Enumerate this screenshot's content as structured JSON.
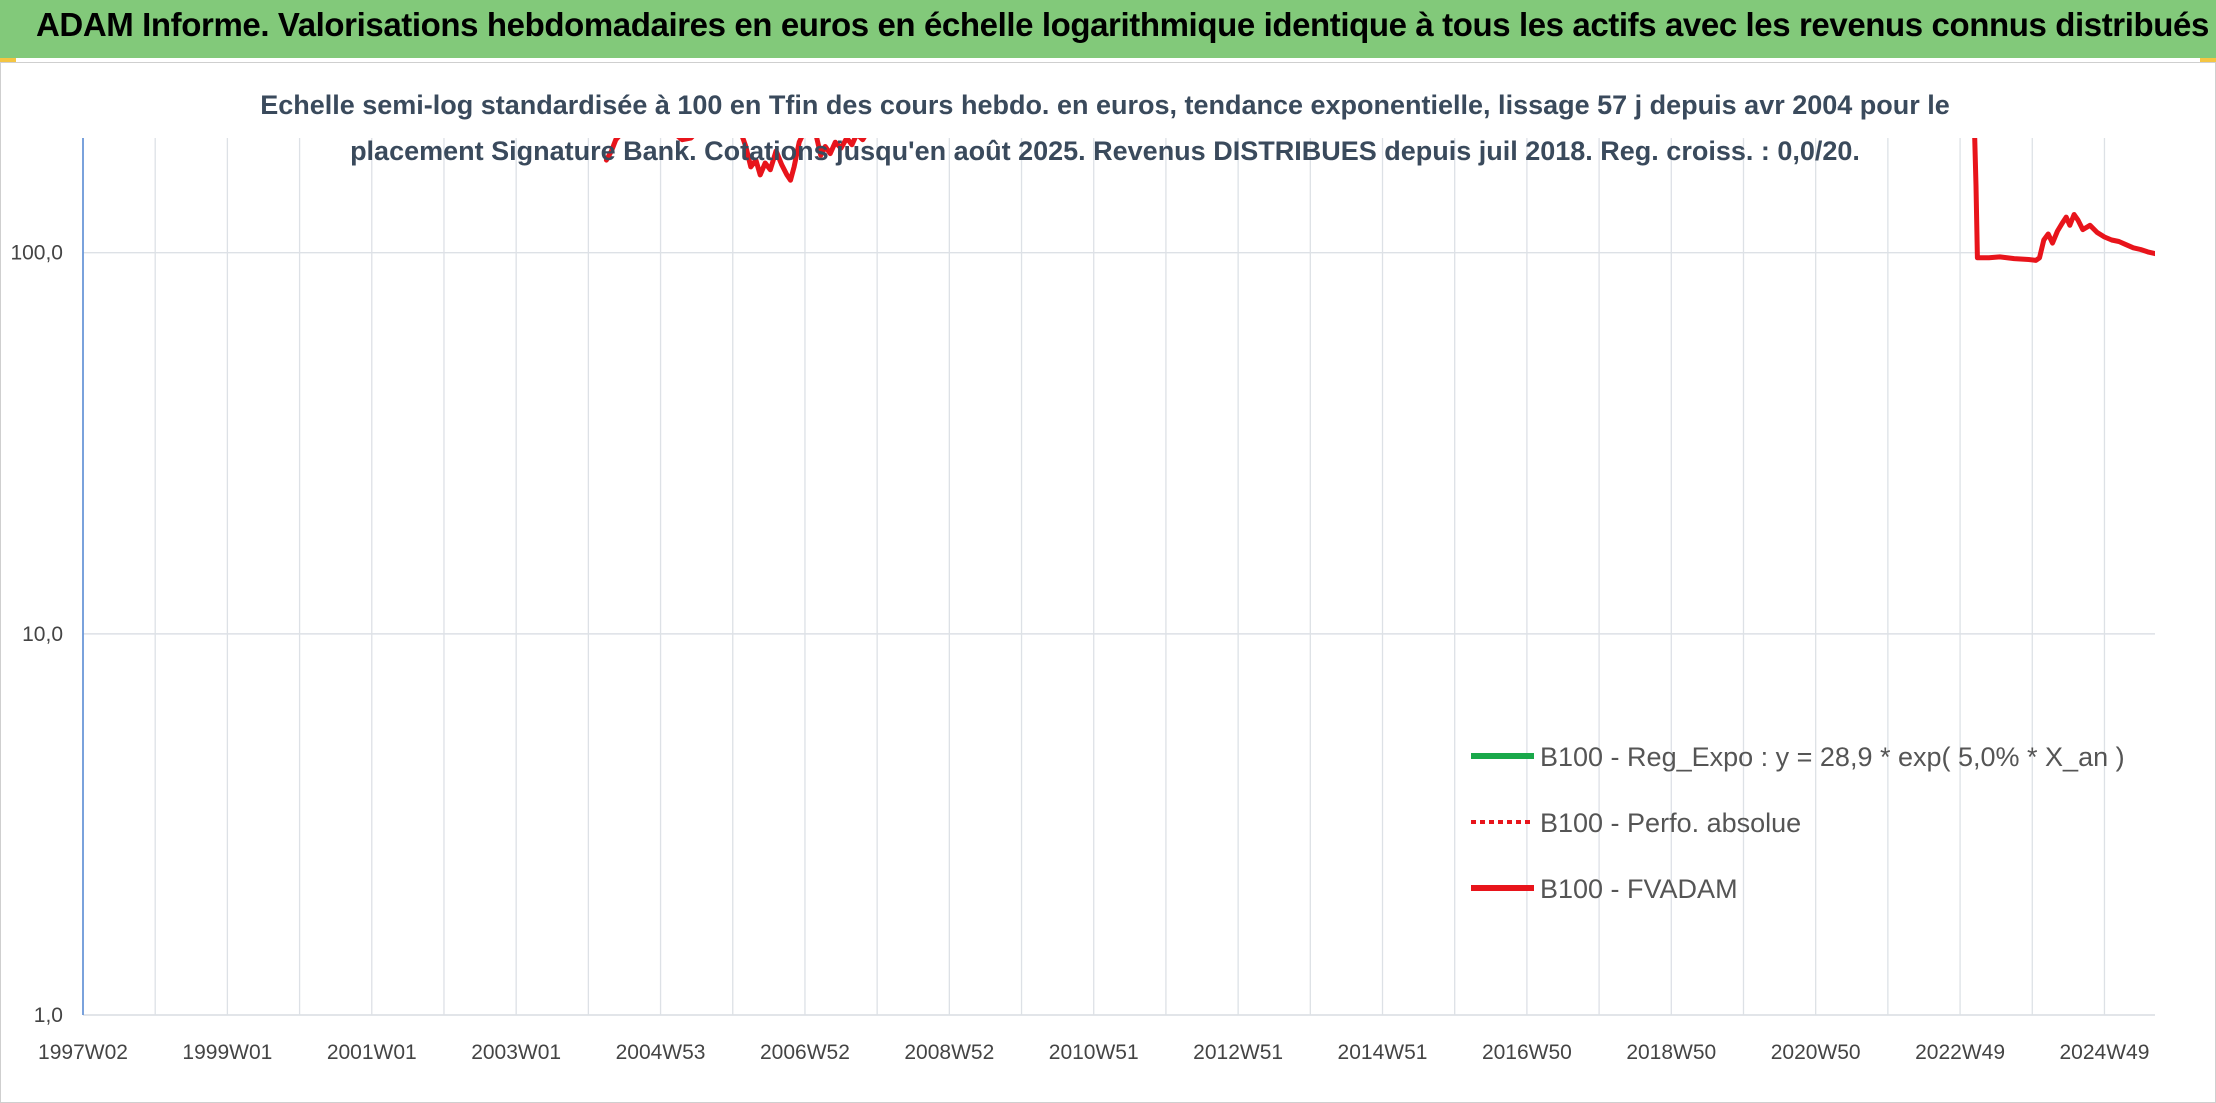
{
  "header": {
    "title": "ADAM Informe. Valorisations hebdomadaires en euros en échelle logarithmique identique à tous les actifs avec les revenus connus distribués"
  },
  "colors": {
    "banner": "#82c97a",
    "accent_corner": "#f4c542",
    "series_fvadam": "#e8141b",
    "series_reg_expo": "#19a84a",
    "series_perfo": "#e8141b",
    "grid": "#dde1e6",
    "y_axis_line": "#5b8ed6"
  },
  "chart_data": {
    "type": "line",
    "subtitle_lines": [
      "Echelle semi-log standardisée à 100 en Tfin des cours hebdo. en euros, tendance exponentielle, lissage 57 j depuis avr 2004 pour le",
      "placement Signature Bank. Cotations jusqu'en août 2025. Revenus DISTRIBUES depuis juil 2018. Reg. croiss. : 0,0/20."
    ],
    "y_scale": "log",
    "ylim": [
      1,
      200
    ],
    "y_ticks": [
      {
        "value": 1,
        "label": "1,0"
      },
      {
        "value": 10,
        "label": "10,0"
      },
      {
        "value": 100,
        "label": "100,0"
      }
    ],
    "x_range": [
      1997.0,
      2025.7
    ],
    "x_tick_labels": [
      "1997W02",
      "1999W01",
      "2001W01",
      "2003W01",
      "2004W53",
      "2006W52",
      "2008W52",
      "2010W51",
      "2012W51",
      "2014W51",
      "2016W50",
      "2018W50",
      "2020W50",
      "2022W49",
      "2024W49"
    ],
    "x_tick_years": [
      1997.0,
      1999.0,
      2001.0,
      2003.0,
      2005.0,
      2007.0,
      2009.0,
      2011.0,
      2013.0,
      2015.0,
      2017.0,
      2019.0,
      2021.0,
      2023.0,
      2025.0
    ],
    "grid": true,
    "legend_position": "bottom-right",
    "legend": [
      {
        "label": "B100 - Reg_Expo : y = 28,9 * exp( 5,0% *  X_an )",
        "style": "solid",
        "color": "#19a84a"
      },
      {
        "label": "B100 - Perfo. absolue",
        "style": "dotted",
        "color": "#e8141b"
      },
      {
        "label": "B100 - FVADAM",
        "style": "solid",
        "color": "#e8141b"
      }
    ],
    "series": [
      {
        "name": "B100 - FVADAM",
        "color": "#e8141b",
        "segments": [
          [
            [
              2004.25,
              175
            ],
            [
              2004.32,
              185
            ],
            [
              2004.38,
              198
            ],
            [
              2004.45,
              205
            ],
            [
              2004.52,
              210
            ],
            [
              2004.6,
              215
            ]
          ],
          [
            [
              2005.2,
              205
            ],
            [
              2005.3,
              198
            ],
            [
              2005.42,
              200
            ],
            [
              2005.55,
              212
            ]
          ],
          [
            [
              2006.1,
              210
            ],
            [
              2006.18,
              190
            ],
            [
              2006.25,
              168
            ],
            [
              2006.32,
              175
            ],
            [
              2006.38,
              160
            ],
            [
              2006.45,
              172
            ],
            [
              2006.52,
              165
            ],
            [
              2006.6,
              185
            ],
            [
              2006.68,
              170
            ],
            [
              2006.75,
              160
            ],
            [
              2006.8,
              155
            ],
            [
              2006.85,
              168
            ],
            [
              2006.92,
              195
            ],
            [
              2007.0,
              210
            ],
            [
              2007.08,
              215
            ],
            [
              2007.15,
              205
            ],
            [
              2007.22,
              180
            ],
            [
              2007.28,
              190
            ],
            [
              2007.35,
              182
            ],
            [
              2007.42,
              195
            ],
            [
              2007.5,
              188
            ],
            [
              2007.58,
              200
            ],
            [
              2007.65,
              192
            ],
            [
              2007.72,
              205
            ],
            [
              2007.8,
              198
            ],
            [
              2007.88,
              210
            ],
            [
              2007.95,
              215
            ]
          ],
          [
            [
              2023.2,
              210
            ],
            [
              2023.22,
              150
            ],
            [
              2023.24,
              97
            ],
            [
              2023.4,
              97
            ],
            [
              2023.55,
              97.5
            ],
            [
              2023.75,
              96.5
            ],
            [
              2023.95,
              96
            ],
            [
              2024.05,
              95.5
            ],
            [
              2024.1,
              97
            ],
            [
              2024.16,
              108
            ],
            [
              2024.22,
              112
            ],
            [
              2024.28,
              106
            ],
            [
              2024.35,
              114
            ],
            [
              2024.42,
              120
            ],
            [
              2024.47,
              124
            ],
            [
              2024.52,
              118
            ],
            [
              2024.58,
              126
            ],
            [
              2024.63,
              122
            ],
            [
              2024.7,
              115
            ],
            [
              2024.8,
              118
            ],
            [
              2024.9,
              113
            ],
            [
              2025.0,
              110
            ],
            [
              2025.1,
              108
            ],
            [
              2025.2,
              107
            ],
            [
              2025.3,
              105
            ],
            [
              2025.4,
              103
            ],
            [
              2025.5,
              102
            ],
            [
              2025.6,
              100.5
            ],
            [
              2025.7,
              99.5
            ]
          ]
        ]
      }
    ]
  }
}
